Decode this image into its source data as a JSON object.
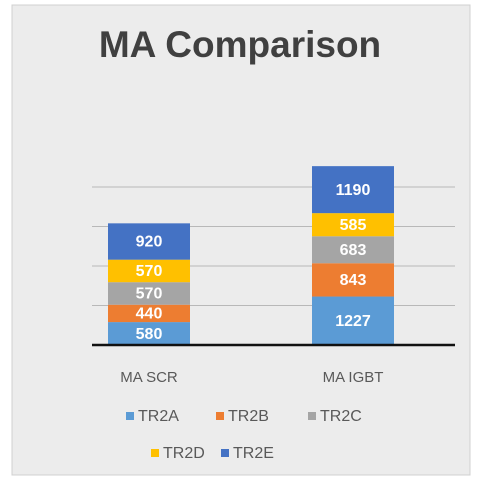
{
  "chart_data": {
    "type": "stacked_bar",
    "title": "MA Comparison",
    "categories": [
      "MA SCR",
      "MA IGBT"
    ],
    "series": [
      {
        "name": "TR2A",
        "color": "#5b9bd5",
        "values": [
          580,
          1227
        ]
      },
      {
        "name": "TR2B",
        "color": "#ed7d31",
        "values": [
          440,
          843
        ]
      },
      {
        "name": "TR2C",
        "color": "#a5a5a5",
        "values": [
          570,
          683
        ]
      },
      {
        "name": "TR2D",
        "color": "#ffc000",
        "values": [
          570,
          585
        ]
      },
      {
        "name": "TR2E",
        "color": "#4472c4",
        "values": [
          920,
          1190
        ]
      }
    ],
    "ylim": [
      0,
      4600
    ],
    "yticks": [
      0,
      1000,
      2000,
      3000,
      4000
    ],
    "grid": true,
    "legend": "bottom"
  }
}
